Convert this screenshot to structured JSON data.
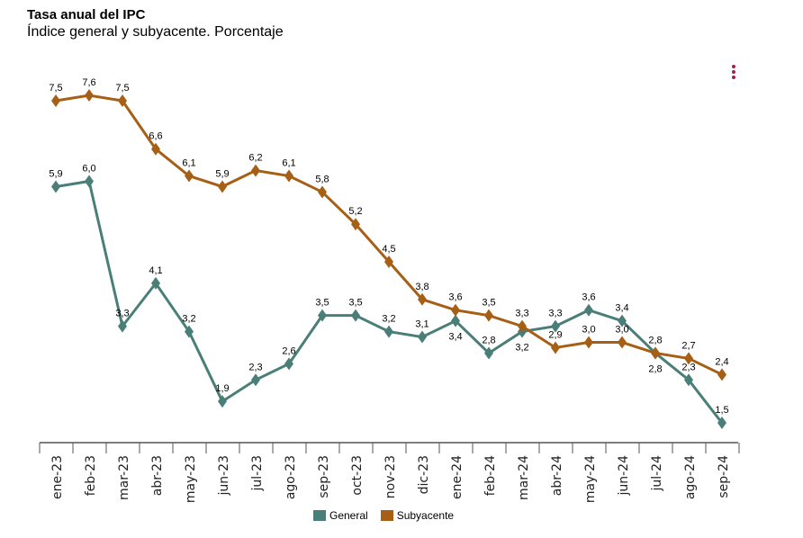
{
  "chart_data": {
    "type": "line",
    "title": "Tasa anual del IPC",
    "subtitle": "Índice general y subyacente. Porcentaje",
    "categories": [
      "ene-23",
      "feb-23",
      "mar-23",
      "abr-23",
      "may-23",
      "jun-23",
      "jul-23",
      "ago-23",
      "sep-23",
      "oct-23",
      "nov-23",
      "dic-23",
      "ene-24",
      "feb-24",
      "mar-24",
      "abr-24",
      "may-24",
      "jun-24",
      "jul-24",
      "ago-24",
      "sep-24"
    ],
    "series": [
      {
        "name": "General",
        "color": "#4a7e78",
        "values": [
          5.9,
          6.0,
          3.3,
          4.1,
          3.2,
          1.9,
          2.3,
          2.6,
          3.5,
          3.5,
          3.2,
          3.1,
          3.4,
          2.8,
          3.2,
          3.3,
          3.6,
          3.4,
          2.8,
          2.3,
          1.5
        ]
      },
      {
        "name": "Subyacente",
        "color": "#a65f14",
        "values": [
          7.5,
          7.6,
          7.5,
          6.6,
          6.1,
          5.9,
          6.2,
          6.1,
          5.8,
          5.2,
          4.5,
          3.8,
          3.6,
          3.5,
          3.3,
          2.9,
          3.0,
          3.0,
          2.8,
          2.7,
          2.4
        ]
      }
    ],
    "xlabel": "",
    "ylabel": "",
    "grid": false,
    "legend": "bottom"
  }
}
